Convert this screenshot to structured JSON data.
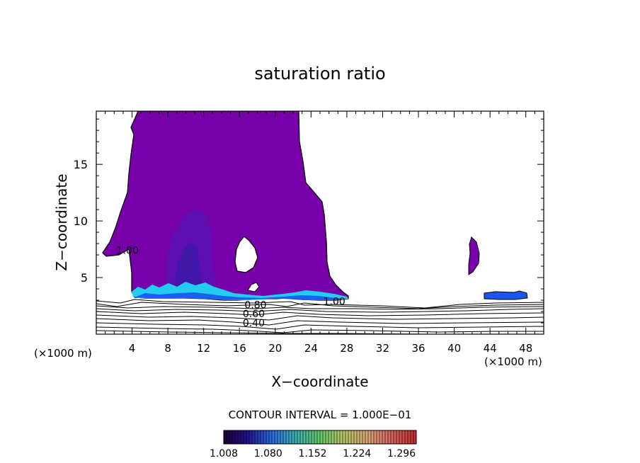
{
  "chart_data": {
    "type": "contour",
    "title": "saturation ratio",
    "xlabel": "X−coordinate",
    "ylabel": "Z−coordinate",
    "x_unit_left": "(×1000 m)",
    "x_unit_right": "(×1000 m)",
    "xlim": [
      0,
      50
    ],
    "ylim": [
      0,
      19.7
    ],
    "x_ticks": [
      "4",
      "8",
      "12",
      "16",
      "20",
      "24",
      "28",
      "32",
      "36",
      "40",
      "44",
      "48"
    ],
    "y_ticks": [
      "5",
      "10",
      "15"
    ],
    "contour_interval_label": "CONTOUR INTERVAL = 1.000E−01",
    "contour_labels": [
      {
        "text": "1.00",
        "x": 3.5,
        "y": 7.4
      },
      {
        "text": "1.00",
        "x": 26.6,
        "y": 2.9
      },
      {
        "text": "0.80",
        "x": 17.8,
        "y": 2.6
      },
      {
        "text": "0.60",
        "x": 17.6,
        "y": 1.8
      },
      {
        "text": "0.40",
        "x": 17.6,
        "y": 1.0
      }
    ],
    "colorbar": {
      "min": 1.008,
      "max": 1.32,
      "tick_labels": [
        "1.008",
        "1.080",
        "1.152",
        "1.224",
        "1.296"
      ]
    },
    "colors": {
      "fill_main": "#7700aa",
      "fill_mid": "#5a10b0",
      "fill_core": "#3c17a8",
      "fill_cyan": "#22ccee",
      "fill_blue": "#1a55ee"
    }
  }
}
